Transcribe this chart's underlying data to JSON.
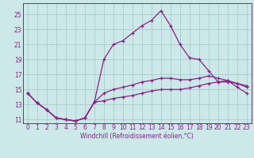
{
  "background_color": "#cce8e8",
  "grid_color": "#aacccc",
  "line_color": "#882288",
  "xlabel": "Windchill (Refroidissement éolien,°C)",
  "hours": [
    0,
    1,
    2,
    3,
    4,
    5,
    6,
    7,
    8,
    9,
    10,
    11,
    12,
    13,
    14,
    15,
    16,
    17,
    18,
    19,
    20,
    21,
    22,
    23
  ],
  "series_a": [
    14.5,
    13.2,
    12.3,
    11.2,
    11.0,
    10.8,
    11.2,
    13.3,
    19.0,
    21.0,
    21.5,
    22.5,
    23.5,
    24.2,
    25.5,
    23.5,
    21.0,
    19.2,
    19.0,
    17.5,
    16.0,
    16.2,
    15.3,
    14.5
  ],
  "series_b": [
    14.5,
    13.2,
    12.3,
    11.2,
    11.0,
    10.8,
    11.2,
    13.3,
    14.5,
    15.0,
    15.3,
    15.6,
    16.0,
    16.2,
    16.5,
    16.5,
    16.3,
    16.3,
    16.5,
    16.8,
    16.5,
    16.2,
    15.8,
    15.3
  ],
  "series_c": [
    14.5,
    13.2,
    12.3,
    11.2,
    11.0,
    10.8,
    11.2,
    13.3,
    13.5,
    13.8,
    14.0,
    14.2,
    14.5,
    14.8,
    15.0,
    15.0,
    15.0,
    15.2,
    15.5,
    15.8,
    16.0,
    16.0,
    15.8,
    15.5
  ],
  "ylim_min": 10.5,
  "ylim_max": 26.5,
  "yticks": [
    11,
    13,
    15,
    17,
    19,
    21,
    23,
    25
  ],
  "xlim_min": -0.5,
  "xlim_max": 23.5,
  "tick_fontsize": 5.5,
  "xlabel_fontsize": 5.5
}
